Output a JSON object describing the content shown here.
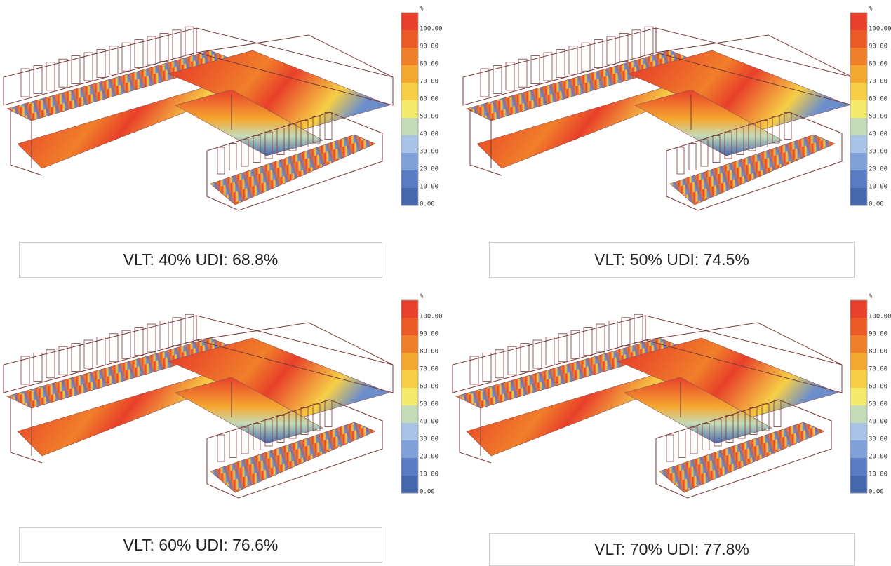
{
  "panels": [
    {
      "caption": "VLT: 40% UDI: 68.8%",
      "legend": {
        "unit": "%",
        "ticks": [
          "100.00",
          "90.00",
          "80.00",
          "70.00",
          "60.00",
          "50.00",
          "40.00",
          "30.00",
          "20.00",
          "10.00",
          "0.00"
        ]
      }
    },
    {
      "caption": "VLT: 50% UDI: 74.5%",
      "legend": {
        "unit": "%",
        "ticks": [
          "100.00",
          "90.00",
          "80.00",
          "70.00",
          "60.00",
          "50.00",
          "40.00",
          "30.00",
          "20.00",
          "10.00",
          "0.00"
        ]
      }
    },
    {
      "caption": "VLT: 60% UDI: 76.6%",
      "legend": {
        "unit": "%",
        "ticks": [
          "100.00",
          "90.00",
          "80.00",
          "70.00",
          "60.00",
          "50.00",
          "40.00",
          "30.00",
          "20.00",
          "10.00",
          "0.00"
        ]
      }
    },
    {
      "caption": "VLT: 70% UDI: 77.8%",
      "legend": {
        "unit": "%",
        "ticks": [
          "100.00",
          "90.00",
          "80.00",
          "70.00",
          "60.00",
          "50.00",
          "40.00",
          "30.00",
          "20.00",
          "10.00",
          "0.00"
        ]
      }
    }
  ]
}
